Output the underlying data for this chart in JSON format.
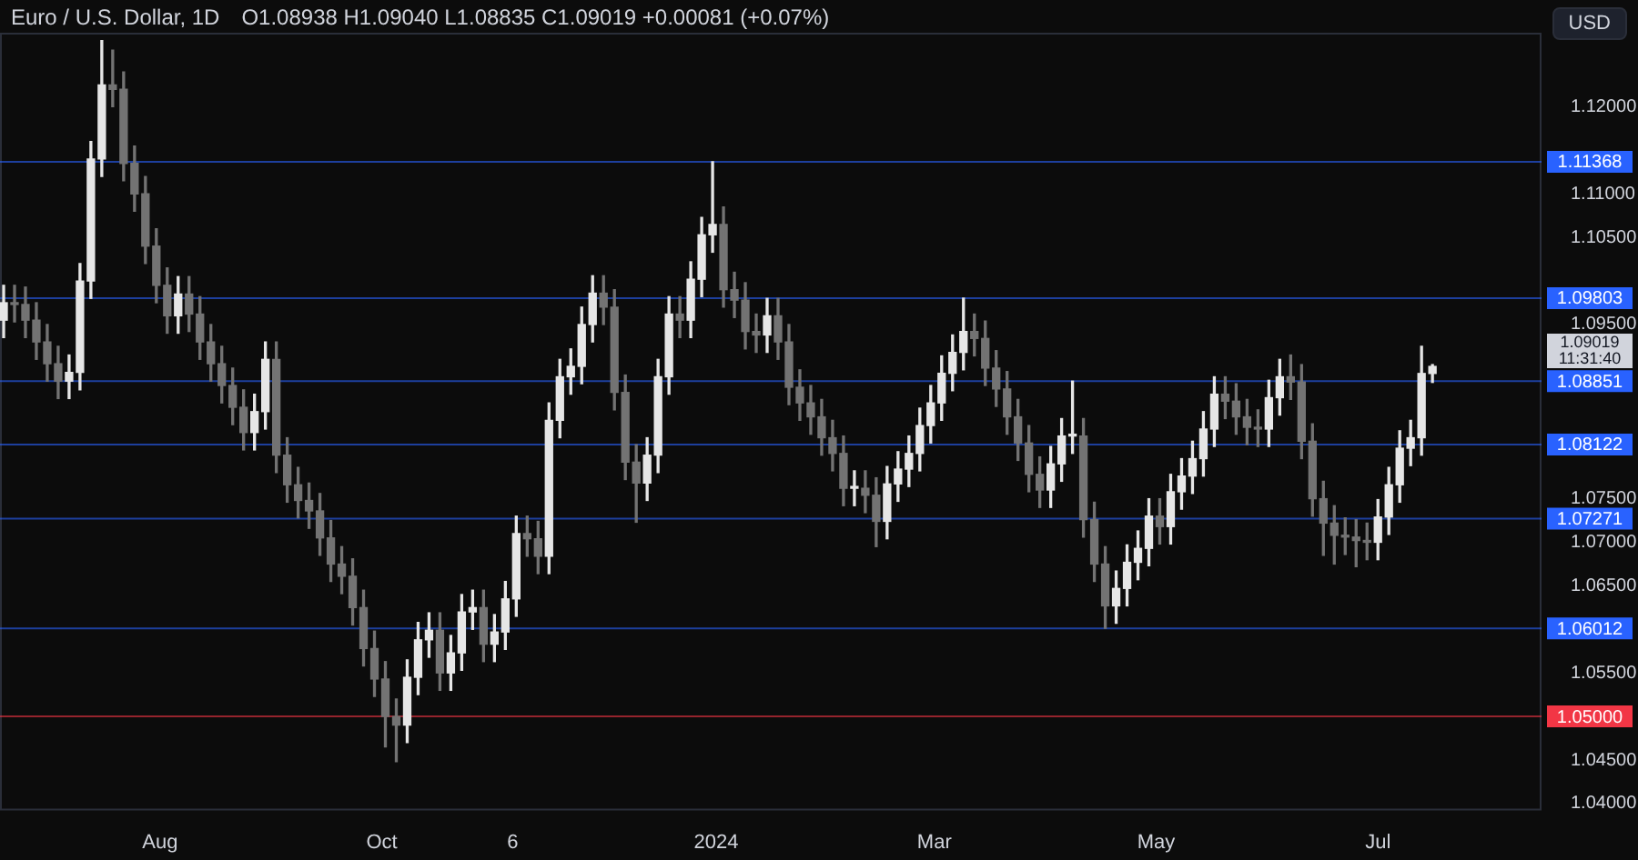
{
  "chart_data": {
    "type": "candlestick",
    "title": "Euro / U.S. Dollar, 1D",
    "subtitle": "O1.08938 H1.09040 L1.08835 C1.09019 +0.00081 (+0.07%)",
    "colors": [
      "#e6e6e6",
      "#737373",
      "#737373",
      "#737373",
      "#737373",
      "#737373",
      "#e6e6e6",
      "#e6e6e6",
      "#e6e6e6",
      "#e6e6e6",
      "#737373",
      "#737373",
      "#737373",
      "#737373",
      "#737373",
      "#737373",
      "#e6e6e6",
      "#737373",
      "#737373",
      "#737373",
      "#737373",
      "#737373",
      "#737373",
      "#e6e6e6",
      "#e6e6e6",
      "#737373",
      "#737373",
      "#737373",
      "#737373",
      "#737373",
      "#737373",
      "#737373",
      "#737373",
      "#737373",
      "#737373",
      "#737373",
      "#737373",
      "#e6e6e6",
      "#e6e6e6",
      "#e6e6e6",
      "#737373",
      "#e6e6e6",
      "#e6e6e6",
      "#e6e6e6",
      "#737373",
      "#e6e6e6",
      "#e6e6e6",
      "#e6e6e6",
      "#737373",
      "#737373",
      "#e6e6e6",
      "#e6e6e6",
      "#e6e6e6",
      "#e6e6e6",
      "#e6e6e6",
      "#737373",
      "#737373",
      "#737373",
      "#737373",
      "#e6e6e6",
      "#e6e6e6",
      "#e6e6e6",
      "#737373",
      "#e6e6e6",
      "#e6e6e6",
      "#e6e6e6",
      "#737373",
      "#737373",
      "#737373",
      "#737373",
      "#e6e6e6",
      "#737373",
      "#737373",
      "#737373",
      "#737373",
      "#737373",
      "#737373",
      "#737373",
      "#e6e6e6",
      "#737373",
      "#737373",
      "#e6e6e6",
      "#e6e6e6",
      "#e6e6e6",
      "#e6e6e6",
      "#e6e6e6",
      "#e6e6e6",
      "#e6e6e6",
      "#e6e6e6",
      "#737373",
      "#737373",
      "#737373",
      "#737373",
      "#737373",
      "#737373",
      "#737373",
      "#e6e6e6",
      "#e6e6e6",
      "#e6e6e6",
      "#737373",
      "#737373",
      "#737373",
      "#e6e6e6",
      "#e6e6e6",
      "#e6e6e6",
      "#e6e6e6",
      "#737373",
      "#e6e6e6",
      "#e6e6e6",
      "#e6e6e6",
      "#e6e6e6",
      "#e6e6e6",
      "#737373",
      "#737373",
      "#737373",
      "#737373",
      "#e6e6e6",
      "#e6e6e6",
      "#737373",
      "#737373",
      "#737373",
      "#737373",
      "#737373",
      "#737373",
      "#737373",
      "#737373",
      "#e6e6e6",
      "#e6e6e6",
      "#e6e6e6",
      "#e6e6e6",
      "#e6e6e6",
      "#e6e6e6"
    ],
    "x": [
      "2023-06-19",
      "2023-06-22",
      "2023-06-25",
      "2023-06-28",
      "2023-07-01",
      "2023-07-04",
      "2023-07-07",
      "2023-07-10",
      "2023-07-13",
      "2023-07-16",
      "2023-07-19",
      "2023-07-22",
      "2023-07-25",
      "2023-07-28",
      "2023-07-31",
      "2023-08-03",
      "2023-08-06",
      "2023-08-09",
      "2023-08-12",
      "2023-08-15",
      "2023-08-18",
      "2023-08-21",
      "2023-08-24",
      "2023-08-27",
      "2023-08-30",
      "2023-09-02",
      "2023-09-05",
      "2023-09-08",
      "2023-09-11",
      "2023-09-14",
      "2023-09-17",
      "2023-09-20",
      "2023-09-23",
      "2023-09-26",
      "2023-09-29",
      "2023-10-02",
      "2023-10-05",
      "2023-10-08",
      "2023-10-11",
      "2023-10-14",
      "2023-10-17",
      "2023-10-20",
      "2023-10-23",
      "2023-10-26",
      "2023-10-29",
      "2023-11-01",
      "2023-11-04",
      "2023-11-07",
      "2023-11-10",
      "2023-11-13",
      "2023-11-16",
      "2023-11-19",
      "2023-11-22",
      "2023-11-25",
      "2023-11-28",
      "2023-12-01",
      "2023-12-04",
      "2023-12-07",
      "2023-12-10",
      "2023-12-13",
      "2023-12-16",
      "2023-12-19",
      "2023-12-22",
      "2023-12-25",
      "2023-12-28",
      "2023-12-31",
      "2024-01-03",
      "2024-01-06",
      "2024-01-09",
      "2024-01-12",
      "2024-01-15",
      "2024-01-18",
      "2024-01-21",
      "2024-01-24",
      "2024-01-27",
      "2024-01-30",
      "2024-02-02",
      "2024-02-05",
      "2024-02-08",
      "2024-02-11",
      "2024-02-14",
      "2024-02-17",
      "2024-02-20",
      "2024-02-23",
      "2024-02-26",
      "2024-02-29",
      "2024-03-03",
      "2024-03-06",
      "2024-03-09",
      "2024-03-12",
      "2024-03-15",
      "2024-03-18",
      "2024-03-21",
      "2024-03-24",
      "2024-03-27",
      "2024-03-30",
      "2024-04-02",
      "2024-04-05",
      "2024-04-08",
      "2024-04-11",
      "2024-04-14",
      "2024-04-17",
      "2024-04-20",
      "2024-04-23",
      "2024-04-26",
      "2024-04-29",
      "2024-05-02",
      "2024-05-05",
      "2024-05-08",
      "2024-05-11",
      "2024-05-14",
      "2024-05-17",
      "2024-05-20",
      "2024-05-23",
      "2024-05-26",
      "2024-05-29",
      "2024-06-01",
      "2024-06-04",
      "2024-06-07",
      "2024-06-10",
      "2024-06-13",
      "2024-06-16",
      "2024-06-19",
      "2024-06-22",
      "2024-06-25",
      "2024-06-28",
      "2024-07-01",
      "2024-07-04",
      "2024-07-07",
      "2024-07-10",
      "2024-07-13",
      "2024-07-16"
    ],
    "ohlc": [
      [
        1.0955,
        1.0995,
        1.0935,
        1.0975
      ],
      [
        1.0975,
        1.0995,
        1.0953,
        1.0973
      ],
      [
        1.0973,
        1.0993,
        1.0935,
        1.0955
      ],
      [
        1.0955,
        1.0975,
        1.091,
        1.093
      ],
      [
        1.093,
        1.095,
        1.0885,
        1.0905
      ],
      [
        1.0905,
        1.0925,
        1.0865,
        1.0885
      ],
      [
        1.0885,
        1.0915,
        1.0865,
        1.0895
      ],
      [
        1.0895,
        1.102,
        1.0875,
        1.1
      ],
      [
        1.1,
        1.116,
        1.098,
        1.114
      ],
      [
        1.114,
        1.1276,
        1.112,
        1.1225
      ],
      [
        1.1225,
        1.1265,
        1.12,
        1.122
      ],
      [
        1.122,
        1.124,
        1.1115,
        1.1135
      ],
      [
        1.1135,
        1.1155,
        1.108,
        1.11
      ],
      [
        1.11,
        1.112,
        1.102,
        1.104
      ],
      [
        1.104,
        1.106,
        1.0975,
        1.0995
      ],
      [
        1.0995,
        1.1015,
        1.094,
        1.096
      ],
      [
        1.096,
        1.1005,
        1.094,
        1.0985
      ],
      [
        1.0985,
        1.1005,
        1.0942,
        1.0962
      ],
      [
        1.0962,
        1.0982,
        1.091,
        1.093
      ],
      [
        1.093,
        1.095,
        1.0885,
        1.0905
      ],
      [
        1.0905,
        1.0925,
        1.086,
        1.088
      ],
      [
        1.088,
        1.09,
        1.0835,
        1.0855
      ],
      [
        1.0855,
        1.0875,
        1.0806,
        1.0826
      ],
      [
        1.0826,
        1.087,
        1.0806,
        1.085
      ],
      [
        1.085,
        1.093,
        1.083,
        1.091
      ],
      [
        1.091,
        1.093,
        1.078,
        1.08
      ],
      [
        1.08,
        1.082,
        1.0746,
        1.0766
      ],
      [
        1.0766,
        1.0786,
        1.0728,
        1.0748
      ],
      [
        1.0748,
        1.0768,
        1.0716,
        1.0736
      ],
      [
        1.0736,
        1.0756,
        1.0685,
        1.0705
      ],
      [
        1.0705,
        1.0725,
        1.0655,
        1.0675
      ],
      [
        1.0675,
        1.0695,
        1.0641,
        1.0661
      ],
      [
        1.0661,
        1.0681,
        1.0605,
        1.0625
      ],
      [
        1.0625,
        1.0645,
        1.0558,
        1.0578
      ],
      [
        1.0578,
        1.0598,
        1.0523,
        1.0543
      ],
      [
        1.0543,
        1.0563,
        1.0465,
        1.05
      ],
      [
        1.05,
        1.052,
        1.0448,
        1.049
      ],
      [
        1.049,
        1.0565,
        1.047,
        1.0545
      ],
      [
        1.0545,
        1.0608,
        1.0525,
        1.0588
      ],
      [
        1.0588,
        1.0619,
        1.0568,
        1.0599
      ],
      [
        1.0599,
        1.0619,
        1.053,
        1.055
      ],
      [
        1.055,
        1.0593,
        1.053,
        1.0573
      ],
      [
        1.0573,
        1.064,
        1.0553,
        1.062
      ],
      [
        1.062,
        1.0645,
        1.06,
        1.0625
      ],
      [
        1.0625,
        1.0645,
        1.0563,
        1.0583
      ],
      [
        1.0583,
        1.0617,
        1.0563,
        1.0597
      ],
      [
        1.0597,
        1.0655,
        1.0577,
        1.0635
      ],
      [
        1.0635,
        1.073,
        1.0615,
        1.071
      ],
      [
        1.071,
        1.073,
        1.0684,
        1.0704
      ],
      [
        1.0704,
        1.0724,
        1.0664,
        1.0684
      ],
      [
        1.0684,
        1.086,
        1.0664,
        1.084
      ],
      [
        1.084,
        1.091,
        1.082,
        1.089
      ],
      [
        1.089,
        1.0922,
        1.087,
        1.0902
      ],
      [
        1.0902,
        1.097,
        1.0882,
        1.095
      ],
      [
        1.095,
        1.1006,
        1.093,
        1.0986
      ],
      [
        1.0986,
        1.1006,
        1.095,
        1.097
      ],
      [
        1.097,
        1.099,
        1.0852,
        1.0872
      ],
      [
        1.0872,
        1.0892,
        1.0772,
        1.0792
      ],
      [
        1.0792,
        1.0812,
        1.0723,
        1.0768
      ],
      [
        1.0768,
        1.082,
        1.0748,
        1.08
      ],
      [
        1.08,
        1.091,
        1.078,
        1.089
      ],
      [
        1.089,
        1.0982,
        1.087,
        1.0962
      ],
      [
        1.0962,
        1.0982,
        1.0935,
        1.0955
      ],
      [
        1.0955,
        1.1022,
        1.0935,
        1.1002
      ],
      [
        1.1002,
        1.1073,
        1.0982,
        1.1053
      ],
      [
        1.1053,
        1.11368,
        1.1033,
        1.1065
      ],
      [
        1.1065,
        1.1085,
        1.097,
        1.099
      ],
      [
        1.099,
        1.101,
        1.0958,
        1.0978
      ],
      [
        1.0978,
        1.0998,
        1.0922,
        1.0942
      ],
      [
        1.0942,
        1.0962,
        1.0918,
        1.0938
      ],
      [
        1.0938,
        1.098,
        1.0918,
        1.096
      ],
      [
        1.096,
        1.098,
        1.091,
        1.093
      ],
      [
        1.093,
        1.095,
        1.0858,
        1.0878
      ],
      [
        1.0878,
        1.0898,
        1.084,
        1.086
      ],
      [
        1.086,
        1.088,
        1.0824,
        1.0844
      ],
      [
        1.0844,
        1.0864,
        1.08,
        1.082
      ],
      [
        1.082,
        1.084,
        1.0782,
        1.0802
      ],
      [
        1.0802,
        1.0822,
        1.0742,
        1.0762
      ],
      [
        1.0762,
        1.0782,
        1.0742,
        1.0762
      ],
      [
        1.0762,
        1.0782,
        1.0734,
        1.0754
      ],
      [
        1.0754,
        1.0774,
        1.0695,
        1.0724
      ],
      [
        1.0724,
        1.0787,
        1.0704,
        1.0767
      ],
      [
        1.0767,
        1.0804,
        1.0747,
        1.0784
      ],
      [
        1.0784,
        1.0822,
        1.0764,
        1.0802
      ],
      [
        1.0802,
        1.0854,
        1.0782,
        1.0834
      ],
      [
        1.0834,
        1.088,
        1.0814,
        1.086
      ],
      [
        1.086,
        1.0914,
        1.084,
        1.0894
      ],
      [
        1.0894,
        1.0938,
        1.0874,
        1.0918
      ],
      [
        1.0918,
        1.09803,
        1.0898,
        1.0942
      ],
      [
        1.0942,
        1.0962,
        1.0914,
        1.0934
      ],
      [
        1.0934,
        1.0954,
        1.088,
        1.09
      ],
      [
        1.09,
        1.092,
        1.0856,
        1.0876
      ],
      [
        1.0876,
        1.0896,
        1.0824,
        1.0844
      ],
      [
        1.0844,
        1.0864,
        1.0794,
        1.0814
      ],
      [
        1.0814,
        1.0834,
        1.0758,
        1.0778
      ],
      [
        1.0778,
        1.0798,
        1.074,
        1.076
      ],
      [
        1.076,
        1.081,
        1.074,
        1.079
      ],
      [
        1.079,
        1.0842,
        1.077,
        1.0822
      ],
      [
        1.0822,
        1.0885,
        1.0802,
        1.0822
      ],
      [
        1.0822,
        1.0842,
        1.0706,
        1.0726
      ],
      [
        1.0726,
        1.0746,
        1.0655,
        1.0675
      ],
      [
        1.0675,
        1.0695,
        1.06012,
        1.0627
      ],
      [
        1.0627,
        1.0667,
        1.0607,
        1.0647
      ],
      [
        1.0647,
        1.0697,
        1.0627,
        1.0677
      ],
      [
        1.0677,
        1.0713,
        1.0657,
        1.0693
      ],
      [
        1.0693,
        1.075,
        1.0673,
        1.073
      ],
      [
        1.073,
        1.075,
        1.0698,
        1.0718
      ],
      [
        1.0718,
        1.0778,
        1.0698,
        1.0758
      ],
      [
        1.0758,
        1.0796,
        1.0738,
        1.0776
      ],
      [
        1.0776,
        1.0816,
        1.0756,
        1.0796
      ],
      [
        1.0796,
        1.085,
        1.0776,
        1.083
      ],
      [
        1.083,
        1.089,
        1.081,
        1.087
      ],
      [
        1.087,
        1.089,
        1.0842,
        1.0862
      ],
      [
        1.0862,
        1.0882,
        1.0824,
        1.0844
      ],
      [
        1.0844,
        1.0864,
        1.0812,
        1.0832
      ],
      [
        1.0832,
        1.0852,
        1.081,
        1.083
      ],
      [
        1.083,
        1.0886,
        1.081,
        1.0866
      ],
      [
        1.0866,
        1.091,
        1.0846,
        1.089
      ],
      [
        1.089,
        1.0915,
        1.0864,
        1.0884
      ],
      [
        1.0884,
        1.0904,
        1.0796,
        1.0816
      ],
      [
        1.0816,
        1.0836,
        1.073,
        1.075
      ],
      [
        1.075,
        1.077,
        1.0685,
        1.0722
      ],
      [
        1.0722,
        1.0742,
        1.0675,
        1.0708
      ],
      [
        1.0708,
        1.0728,
        1.0686,
        1.0706
      ],
      [
        1.0706,
        1.0726,
        1.0672,
        1.0702
      ],
      [
        1.0702,
        1.0722,
        1.068,
        1.07
      ],
      [
        1.07,
        1.0749,
        1.068,
        1.0729
      ],
      [
        1.0729,
        1.0786,
        1.0709,
        1.0766
      ],
      [
        1.0766,
        1.0828,
        1.0746,
        1.0808
      ],
      [
        1.0808,
        1.084,
        1.0788,
        1.082
      ],
      [
        1.082,
        1.0925,
        1.08,
        1.08938
      ],
      [
        1.08938,
        1.0904,
        1.08835,
        1.09019
      ]
    ],
    "xlim": [
      "2023-06-18",
      "2024-08-15"
    ],
    "xticks": [
      {
        "value": "2023-08-01",
        "label": "Aug"
      },
      {
        "value": "2023-10-01",
        "label": "Oct"
      },
      {
        "value": "2023-11-06",
        "label": "6"
      },
      {
        "value": "2024-01-01",
        "label": "2024"
      },
      {
        "value": "2024-03-01",
        "label": "Mar"
      },
      {
        "value": "2024-05-01",
        "label": "May"
      },
      {
        "value": "2024-07-01",
        "label": "Jul"
      }
    ],
    "ylim": [
      1.0392,
      1.1285
    ],
    "yticks": [
      {
        "value": 1.12,
        "label": "1.12000"
      },
      {
        "value": 1.11,
        "label": "1.11000"
      },
      {
        "value": 1.105,
        "label": "1.10500"
      },
      {
        "value": 1.095,
        "label": "1.09500"
      },
      {
        "value": 1.075,
        "label": "1.07500"
      },
      {
        "value": 1.07,
        "label": "1.07000"
      },
      {
        "value": 1.065,
        "label": "1.06500"
      },
      {
        "value": 1.055,
        "label": "1.05500"
      },
      {
        "value": 1.045,
        "label": "1.04500"
      },
      {
        "value": 1.04,
        "label": "1.04000"
      }
    ],
    "ref_lines": [
      {
        "axis": "y",
        "value": 1.11368,
        "label": "1.11368",
        "color": "#2962ff"
      },
      {
        "axis": "y",
        "value": 1.09803,
        "label": "1.09803",
        "color": "#2962ff"
      },
      {
        "axis": "y",
        "value": 1.08851,
        "label": "1.08851",
        "color": "#2962ff"
      },
      {
        "axis": "y",
        "value": 1.08122,
        "label": "1.08122",
        "color": "#2962ff"
      },
      {
        "axis": "y",
        "value": 1.07271,
        "label": "1.07271",
        "color": "#2962ff"
      },
      {
        "axis": "y",
        "value": 1.06012,
        "label": "1.06012",
        "color": "#2962ff"
      },
      {
        "axis": "y",
        "value": 1.05,
        "label": "1.05000",
        "color": "#f23645"
      }
    ],
    "annotations": [
      "USD",
      "1.09019",
      "11:31:40"
    ]
  }
}
